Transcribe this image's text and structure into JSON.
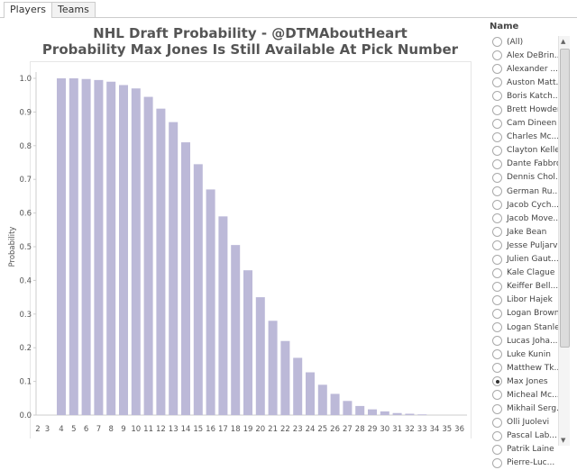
{
  "tabs": [
    {
      "label": "Players",
      "active": true
    },
    {
      "label": "Teams",
      "active": false
    }
  ],
  "title_line1": "NHL Draft Probability - @DTMAboutHeart",
  "title_line2": "Probability Max Jones Is Still Available At Pick Number",
  "filter": {
    "title": "Name",
    "items": [
      "(All)",
      "Alex DeBrin...",
      "Alexander ...",
      "Auston Matt...",
      "Boris Katch...",
      "Brett Howden",
      "Cam Dineen",
      "Charles Mc...",
      "Clayton Keller",
      "Dante Fabbro",
      "Dennis Chol...",
      "German Ru...",
      "Jacob Cych...",
      "Jacob Move...",
      "Jake Bean",
      "Jesse Puljarvi",
      "Julien Gaut...",
      "Kale Clague",
      "Keiffer Bell...",
      "Libor Hajek",
      "Logan Brown",
      "Logan Stanley",
      "Lucas Joha...",
      "Luke Kunin",
      "Matthew Tk...",
      "Max Jones",
      "Micheal Mc...",
      "Mikhail Serg...",
      "Olli Juolevi",
      "Pascal Lab...",
      "Patrik Laine",
      "Pierre-Luc..."
    ],
    "selected": "Max Jones"
  },
  "chart_data": {
    "type": "bar",
    "ylabel": "Probability",
    "xlabel": "",
    "ylim": [
      0,
      1.0
    ],
    "yticks": [
      "0.0",
      "0.1",
      "0.2",
      "0.3",
      "0.4",
      "0.5",
      "0.6",
      "0.7",
      "0.8",
      "0.9",
      "1.0"
    ],
    "color": "#bcb9d8",
    "categories": [
      "2",
      "3",
      "4",
      "5",
      "6",
      "7",
      "8",
      "9",
      "10",
      "11",
      "12",
      "13",
      "14",
      "15",
      "16",
      "17",
      "18",
      "19",
      "20",
      "21",
      "22",
      "23",
      "24",
      "25",
      "26",
      "27",
      "28",
      "29",
      "30",
      "31",
      "32",
      "33",
      "34",
      "35",
      "36"
    ],
    "values": [
      0,
      0,
      1.0,
      1.0,
      0.998,
      0.995,
      0.99,
      0.98,
      0.97,
      0.945,
      0.91,
      0.87,
      0.81,
      0.745,
      0.67,
      0.59,
      0.505,
      0.43,
      0.35,
      0.28,
      0.22,
      0.17,
      0.127,
      0.09,
      0.063,
      0.042,
      0.027,
      0.017,
      0.011,
      0.006,
      0.004,
      0.002,
      0,
      0,
      0
    ]
  }
}
